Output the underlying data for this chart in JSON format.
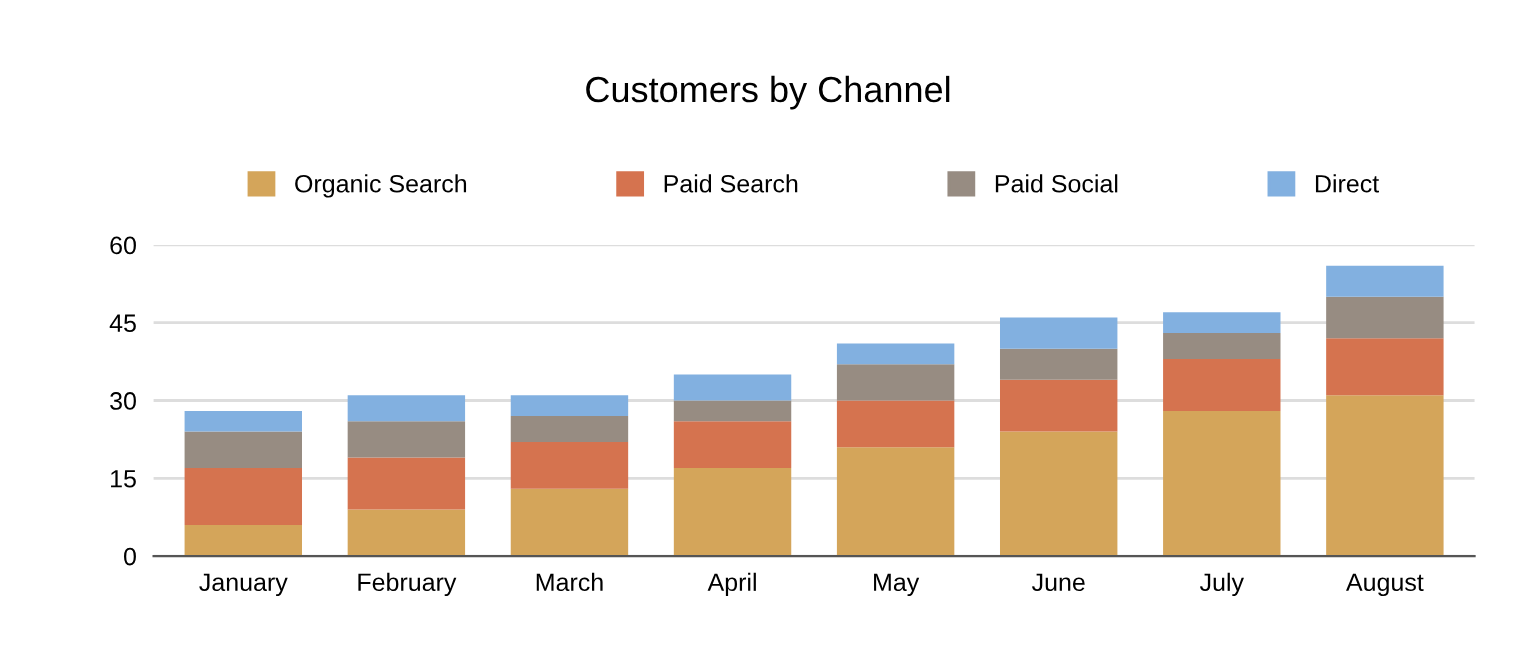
{
  "chart_data": {
    "type": "bar",
    "title": "Customers by Channel",
    "stacked": true,
    "categories": [
      "January",
      "February",
      "March",
      "April",
      "May",
      "June",
      "July",
      "August"
    ],
    "series": [
      {
        "name": "Organic Search",
        "color": "#d4a55a",
        "values": [
          6,
          9,
          13,
          17,
          21,
          24,
          28,
          31
        ]
      },
      {
        "name": "Paid Search",
        "color": "#d5734f",
        "values": [
          11,
          10,
          9,
          9,
          9,
          10,
          10,
          11
        ]
      },
      {
        "name": "Paid Social",
        "color": "#978c82",
        "values": [
          7,
          7,
          5,
          4,
          7,
          6,
          5,
          8
        ]
      },
      {
        "name": "Direct",
        "color": "#82b0e0",
        "values": [
          4,
          5,
          4,
          5,
          4,
          6,
          4,
          6
        ]
      }
    ],
    "ylim": [
      0,
      60
    ],
    "yticks": [
      0,
      15,
      30,
      45,
      60
    ],
    "grid": "y",
    "legend": "top"
  }
}
